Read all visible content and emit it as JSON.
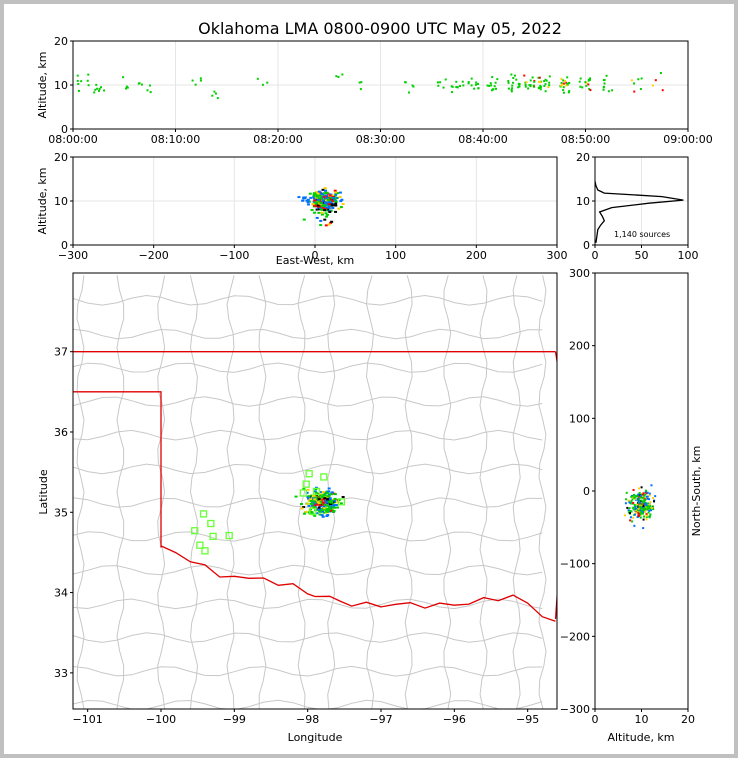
{
  "title": "Oklahoma LMA 0800-0900 UTC May 05, 2022",
  "colors": {
    "early": "#00d000",
    "mid": "#0070ff",
    "late": "#ff0000",
    "hot": "#ffd000",
    "border": "#c8c8c8",
    "state_border": "#ff0000",
    "stations": "#66ff33"
  },
  "chart_data": [
    {
      "id": "time_height",
      "type": "scatter",
      "ylabel": "Altitude, km",
      "ylim": [
        0,
        20
      ],
      "yticks": [
        "0",
        "10",
        "20"
      ],
      "xticks": [
        "08:00:00",
        "08:10:00",
        "08:20:00",
        "08:30:00",
        "08:40:00",
        "08:50:00",
        "09:00:00"
      ],
      "xlim_minutes": [
        0,
        60
      ],
      "clusters": [
        {
          "t": 1,
          "alt": 10.5,
          "n": 8
        },
        {
          "t": 2.5,
          "alt": 9.5,
          "n": 8
        },
        {
          "t": 5,
          "alt": 10.2,
          "n": 4
        },
        {
          "t": 7,
          "alt": 10,
          "n": 6
        },
        {
          "t": 12,
          "alt": 10,
          "n": 4
        },
        {
          "t": 14,
          "alt": 8.5,
          "n": 4
        },
        {
          "t": 18.5,
          "alt": 10.3,
          "n": 3
        },
        {
          "t": 26,
          "alt": 11.5,
          "n": 3
        },
        {
          "t": 28,
          "alt": 10.2,
          "n": 3
        },
        {
          "t": 33,
          "alt": 9.5,
          "n": 5
        },
        {
          "t": 36,
          "alt": 10.5,
          "n": 5
        },
        {
          "t": 37.5,
          "alt": 10,
          "n": 10
        },
        {
          "t": 39,
          "alt": 10.3,
          "n": 10
        },
        {
          "t": 41,
          "alt": 10,
          "n": 12
        },
        {
          "t": 43,
          "alt": 10.5,
          "n": 18
        },
        {
          "t": 44.5,
          "alt": 10,
          "n": 16
        },
        {
          "t": 46,
          "alt": 10.3,
          "n": 20
        },
        {
          "t": 48,
          "alt": 10,
          "n": 22
        },
        {
          "t": 50,
          "alt": 10.5,
          "n": 14
        },
        {
          "t": 52,
          "alt": 10.2,
          "n": 10
        },
        {
          "t": 55,
          "alt": 10,
          "n": 6
        },
        {
          "t": 57,
          "alt": 10.2,
          "n": 4
        }
      ]
    },
    {
      "id": "ew_height",
      "type": "scatter",
      "xlabel": "East-West, km",
      "ylabel": "Altitude, km",
      "xlim": [
        -300,
        300
      ],
      "ylim": [
        0,
        20
      ],
      "xticks": [
        "−300",
        "−200",
        "−100",
        "0",
        "100",
        "200",
        "300"
      ],
      "yticks": [
        "0",
        "10",
        "20"
      ],
      "center_x": 12,
      "center_alt": 10
    },
    {
      "id": "alt_histogram",
      "type": "line",
      "xlim": [
        0,
        100
      ],
      "ylim": [
        0,
        20
      ],
      "xticks": [
        "0",
        "50",
        "100"
      ],
      "yticks": [
        "0",
        "10",
        "20"
      ],
      "annotation": "1,140 sources",
      "profile": [
        {
          "alt": 0.5,
          "count": 1
        },
        {
          "alt": 2,
          "count": 2
        },
        {
          "alt": 3.5,
          "count": 3
        },
        {
          "alt": 4.5,
          "count": 6
        },
        {
          "alt": 5.5,
          "count": 10
        },
        {
          "alt": 6.5,
          "count": 8
        },
        {
          "alt": 7.5,
          "count": 5
        },
        {
          "alt": 8.5,
          "count": 18
        },
        {
          "alt": 9.5,
          "count": 58
        },
        {
          "alt": 10.2,
          "count": 95
        },
        {
          "alt": 11,
          "count": 72
        },
        {
          "alt": 11.8,
          "count": 10
        },
        {
          "alt": 12.5,
          "count": 3
        },
        {
          "alt": 13.5,
          "count": 1
        },
        {
          "alt": 14.5,
          "count": 0
        }
      ]
    },
    {
      "id": "plan_view",
      "type": "scatter",
      "xlabel": "Longitude",
      "ylabel": "Latitude",
      "xlim": [
        -101.2,
        -94.6
      ],
      "ylim": [
        32.55,
        37.98
      ],
      "xticks": [
        "−101",
        "−100",
        "−99",
        "−98",
        "−97",
        "−96",
        "−95"
      ],
      "yticks": [
        "33",
        "34",
        "35",
        "36",
        "37"
      ],
      "center_lon": -97.8,
      "center_lat": 35.12,
      "stations": [
        {
          "lon": -97.98,
          "lat": 35.48
        },
        {
          "lon": -97.78,
          "lat": 35.44
        },
        {
          "lon": -98.02,
          "lat": 35.35
        },
        {
          "lon": -98.06,
          "lat": 35.24
        },
        {
          "lon": -97.88,
          "lat": 35.26
        },
        {
          "lon": -97.54,
          "lat": 35.13
        },
        {
          "lon": -97.93,
          "lat": 35.01
        },
        {
          "lon": -99.42,
          "lat": 34.98
        },
        {
          "lon": -99.32,
          "lat": 34.86
        },
        {
          "lon": -99.54,
          "lat": 34.77
        },
        {
          "lon": -99.29,
          "lat": 34.7
        },
        {
          "lon": -99.07,
          "lat": 34.71
        },
        {
          "lon": -99.47,
          "lat": 34.59
        },
        {
          "lon": -99.4,
          "lat": 34.52
        }
      ]
    },
    {
      "id": "alt_ns",
      "type": "scatter",
      "xlabel": "Altitude, km",
      "ylabel": "North-South, km",
      "xlim": [
        0,
        20
      ],
      "ylim": [
        -300,
        300
      ],
      "xticks": [
        "0",
        "10",
        "20"
      ],
      "yticks": [
        "−300",
        "−200",
        "−100",
        "0",
        "100",
        "200",
        "300"
      ],
      "center_alt": 10,
      "center_ns": -20
    }
  ]
}
